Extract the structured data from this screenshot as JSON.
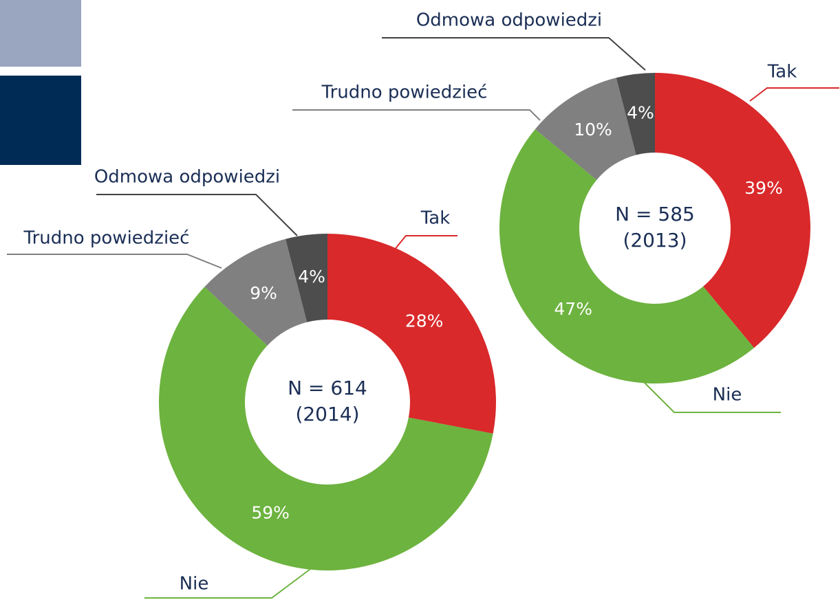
{
  "chart_data": [
    {
      "type": "donut",
      "center_text": [
        "N = 614",
        "(2014)"
      ],
      "categories": [
        "Tak",
        "Nie",
        "Trudno powiedzieć",
        "Odmowa odpowiedzi"
      ],
      "values": [
        28,
        59,
        9,
        4
      ],
      "value_labels": [
        "28%",
        "59%",
        "9%",
        "4%"
      ],
      "colors": [
        "#d9292b",
        "#6db33f",
        "#808080",
        "#4d4d4d"
      ]
    },
    {
      "type": "donut",
      "center_text": [
        "N = 585",
        "(2013)"
      ],
      "categories": [
        "Tak",
        "Nie",
        "Trudno powiedzieć",
        "Odmowa odpowiedzi"
      ],
      "values": [
        39,
        47,
        10,
        4
      ],
      "value_labels": [
        "39%",
        "47%",
        "10%",
        "4%"
      ],
      "colors": [
        "#d9292b",
        "#6db33f",
        "#808080",
        "#4d4d4d"
      ]
    }
  ]
}
